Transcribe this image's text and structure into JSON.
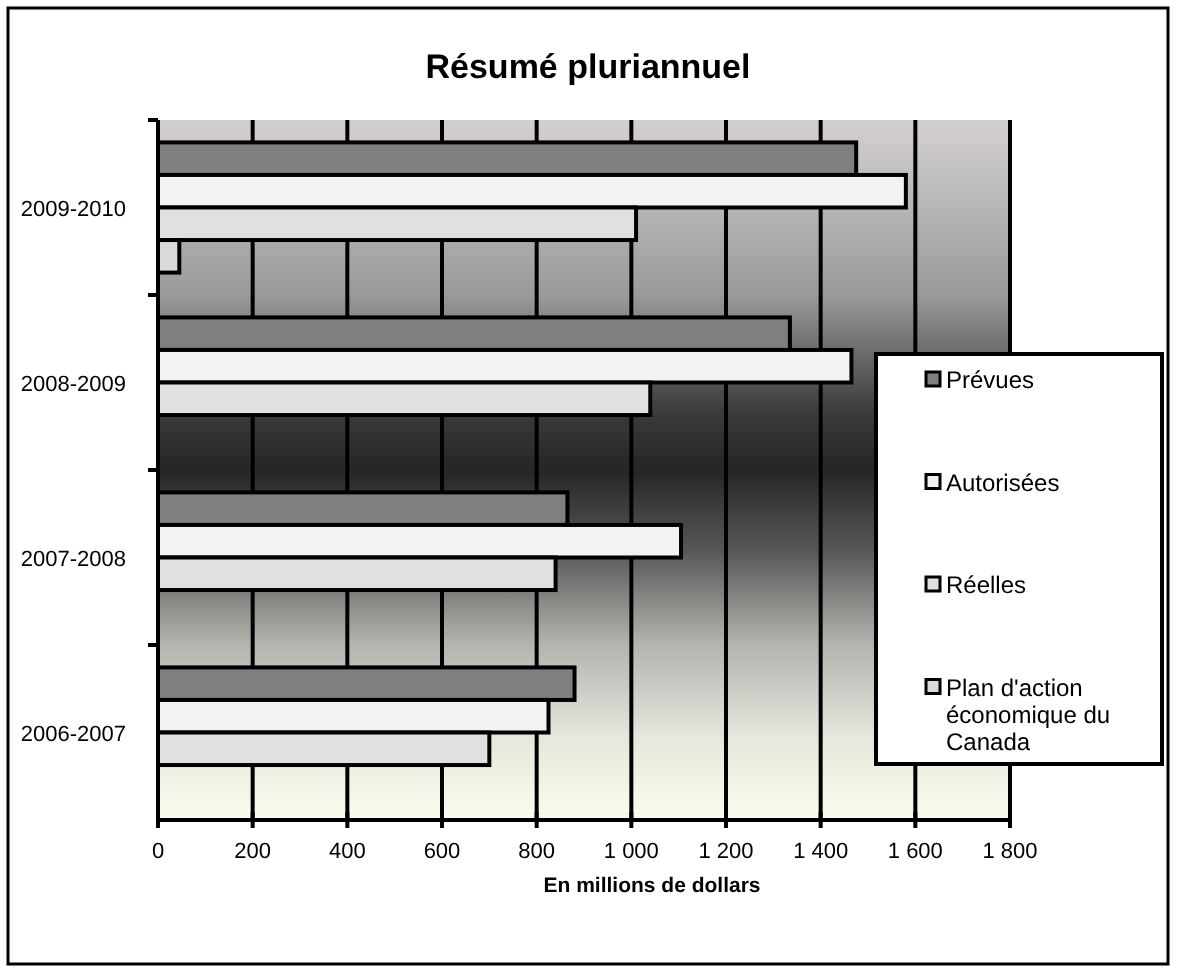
{
  "chart_data": {
    "type": "bar",
    "orientation": "horizontal",
    "title": "Résumé pluriannuel",
    "xlabel": "En millions de dollars",
    "categories": [
      "2009-2010",
      "2008-2009",
      "2007-2008",
      "2006-2007"
    ],
    "series": [
      {
        "name": "Prévues",
        "color": "#7f7f7f",
        "values": [
          1475,
          1335,
          865,
          880
        ]
      },
      {
        "name": "Autorisées",
        "color": "#f2f2f2",
        "values": [
          1580,
          1465,
          1105,
          825
        ]
      },
      {
        "name": "Réelles",
        "color": "#e0e0e0",
        "values": [
          1010,
          1040,
          840,
          700
        ]
      },
      {
        "name": "Plan d'action économique du Canada",
        "color": "#d9d9d9",
        "values": [
          45,
          null,
          null,
          null
        ]
      }
    ],
    "xlim": [
      0,
      1800
    ],
    "xticks": [
      0,
      200,
      400,
      600,
      800,
      {
        "value": 1000,
        "label": "1 000"
      },
      {
        "value": 1200,
        "label": "1 200"
      },
      {
        "value": 1400,
        "label": "1 400"
      },
      {
        "value": 1600,
        "label": "1 600"
      },
      {
        "value": 1800,
        "label": "1 800"
      }
    ],
    "grid": "x",
    "legend": "right"
  }
}
